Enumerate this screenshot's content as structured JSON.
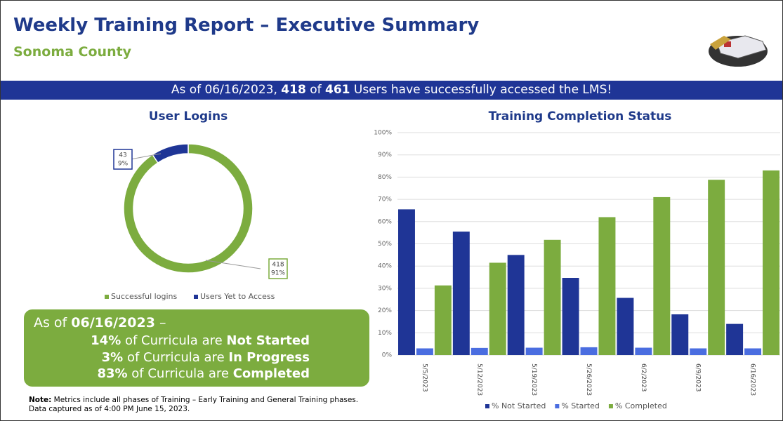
{
  "header": {
    "title": "Weekly Training Report – Executive Summary",
    "subtitle": "Sonoma County"
  },
  "banner": {
    "parts": [
      "As of 06/16/2023, ",
      "418",
      " of ",
      "461",
      " Users have successfully accessed the LMS!"
    ]
  },
  "chart_data": [
    {
      "type": "donut",
      "title": "User Logins",
      "categories": [
        "Successful logins",
        "Users Yet to Access"
      ],
      "values": [
        418,
        43
      ],
      "percent_labels": [
        "91%",
        "9%"
      ],
      "colors": [
        "#7cac3f",
        "#1f3596"
      ]
    },
    {
      "type": "bar",
      "title": "Training Completion Status",
      "categories": [
        "5/5/2023",
        "5/12/2023",
        "5/19/2023",
        "5/26/2023",
        "6/2/2023",
        "6/9/2023",
        "6/16/2023"
      ],
      "series": [
        {
          "name": "% Not Started",
          "color": "#1f3596",
          "values": [
            65.5,
            55.5,
            45,
            34.7,
            25.7,
            18.3,
            14
          ]
        },
        {
          "name": "% Started",
          "color": "#4a6de0",
          "values": [
            3,
            3.2,
            3.3,
            3.5,
            3.3,
            3,
            3
          ]
        },
        {
          "name": "% Completed",
          "color": "#7cac3f",
          "values": [
            31.3,
            41.5,
            51.8,
            62,
            71,
            78.8,
            83
          ]
        }
      ],
      "ylim": [
        0,
        100
      ],
      "yticks": [
        {
          "value": 0,
          "label": "0%"
        },
        {
          "value": 10,
          "label": "10%"
        },
        {
          "value": 20,
          "label": "20%"
        },
        {
          "value": 30,
          "label": "30%"
        },
        {
          "value": 40,
          "label": "40%"
        },
        {
          "value": 50,
          "label": "50%"
        },
        {
          "value": 60,
          "label": "60%"
        },
        {
          "value": 70,
          "label": "70%"
        },
        {
          "value": 80,
          "label": "80%"
        },
        {
          "value": 90,
          "label": "90%"
        },
        {
          "value": 100,
          "label": "100%"
        }
      ],
      "grid": true
    }
  ],
  "summary": {
    "intro": [
      "As of ",
      "06/16/2023",
      " –"
    ],
    "lines": [
      [
        "14%",
        " of Curricula are ",
        "Not Started"
      ],
      [
        "3%",
        " of Curricula are ",
        "In Progress"
      ],
      [
        "83%",
        " of Curricula are ",
        "Completed"
      ]
    ]
  },
  "note": [
    "Note:",
    " Metrics include all phases of Training – Early Training and General Training phases. Data captured as of 4:00 PM June 15, 2023."
  ]
}
